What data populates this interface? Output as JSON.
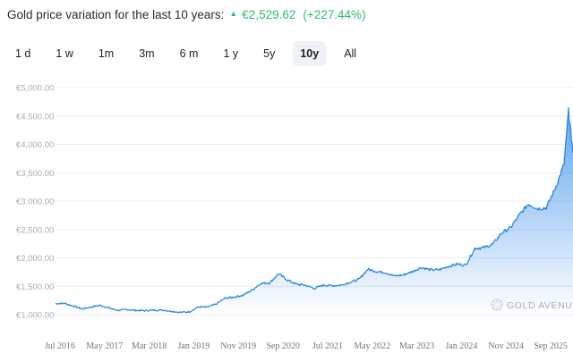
{
  "header": {
    "title": "Gold price variation for the last 10 years:",
    "change": "€2,529.62",
    "percent": "(+227.44%)",
    "trend_icon": "triangle-up-icon",
    "accent": "#2dbb6e"
  },
  "tabs": [
    {
      "label": "1 d",
      "active": false
    },
    {
      "label": "1 w",
      "active": false
    },
    {
      "label": "1m",
      "active": false
    },
    {
      "label": "3m",
      "active": false
    },
    {
      "label": "6 m",
      "active": false
    },
    {
      "label": "1 y",
      "active": false
    },
    {
      "label": "5y",
      "active": false
    },
    {
      "label": "10y",
      "active": true
    },
    {
      "label": "All",
      "active": false
    }
  ],
  "watermark": {
    "text": "GOLD AVENUE",
    "icon": "gold-avenue-logo-icon"
  },
  "chart_data": {
    "type": "area",
    "title": "",
    "xlabel": "",
    "ylabel": "",
    "ylim": [
      1000,
      5000
    ],
    "yticks": [
      1000,
      1500,
      2000,
      2500,
      3000,
      3500,
      4000,
      4500,
      5000
    ],
    "ytick_labels": [
      "€1,000.00",
      "€1,500.00",
      "€2,000.00",
      "€2,500.00",
      "€3,000.00",
      "€3,500.00",
      "€4,000.00",
      "€4,500.00",
      "€5,000.00"
    ],
    "xlim": [
      "2016-06",
      "2026-02"
    ],
    "xtick_labels": [
      {
        "date": "2016-07",
        "label": "Jul 2016"
      },
      {
        "date": "2017-05",
        "label": "May 2017"
      },
      {
        "date": "2018-03",
        "label": "Mar 2018"
      },
      {
        "date": "2019-01",
        "label": "Jan 2019"
      },
      {
        "date": "2019-11",
        "label": "Nov 2019"
      },
      {
        "date": "2020-09",
        "label": "Sep 2020"
      },
      {
        "date": "2021-07",
        "label": "Jul 2021"
      },
      {
        "date": "2022-05",
        "label": "May 2022"
      },
      {
        "date": "2023-03",
        "label": "Mar 2023"
      },
      {
        "date": "2024-01",
        "label": "Jan 2024"
      },
      {
        "date": "2024-11",
        "label": "Nov 2024"
      },
      {
        "date": "2025-09",
        "label": "Sep 2025"
      }
    ],
    "grid": true,
    "line_color": "#2a86e6",
    "series": [
      {
        "x": [
          "2016-06",
          "2016-08",
          "2016-10",
          "2016-12",
          "2017-02",
          "2017-04",
          "2017-06",
          "2017-08",
          "2017-10",
          "2017-12",
          "2018-02",
          "2018-04",
          "2018-06",
          "2018-08",
          "2018-10",
          "2018-12",
          "2019-02",
          "2019-04",
          "2019-06",
          "2019-08",
          "2019-10",
          "2019-12",
          "2020-02",
          "2020-04",
          "2020-06",
          "2020-08",
          "2020-10",
          "2020-12",
          "2021-02",
          "2021-04",
          "2021-06",
          "2021-08",
          "2021-10",
          "2021-12",
          "2022-02",
          "2022-04",
          "2022-06",
          "2022-08",
          "2022-10",
          "2022-12",
          "2023-02",
          "2023-04",
          "2023-06",
          "2023-08",
          "2023-10",
          "2023-12",
          "2024-02",
          "2024-04",
          "2024-06",
          "2024-08",
          "2024-10",
          "2024-12",
          "2025-02",
          "2025-04",
          "2025-06",
          "2025-08",
          "2025-10",
          "2025-12",
          "2026-01",
          "2026-02"
        ],
        "values": [
          1195,
          1200,
          1150,
          1100,
          1135,
          1165,
          1115,
          1075,
          1090,
          1075,
          1070,
          1080,
          1080,
          1060,
          1040,
          1050,
          1135,
          1130,
          1185,
          1290,
          1310,
          1340,
          1430,
          1550,
          1560,
          1720,
          1610,
          1535,
          1520,
          1460,
          1520,
          1510,
          1520,
          1570,
          1620,
          1800,
          1760,
          1740,
          1680,
          1700,
          1760,
          1830,
          1790,
          1790,
          1850,
          1890,
          1875,
          2170,
          2180,
          2240,
          2440,
          2530,
          2760,
          2950,
          2870,
          2880,
          3220,
          3650,
          4590,
          3850
        ]
      }
    ]
  }
}
